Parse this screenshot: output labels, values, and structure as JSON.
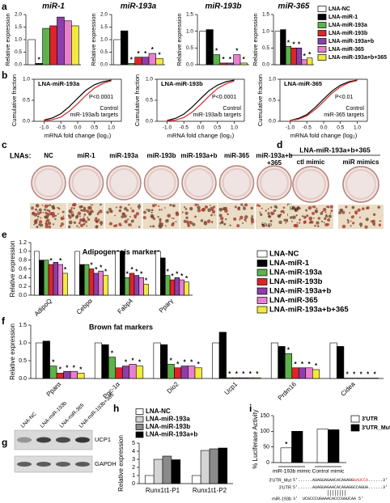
{
  "panel_labels": [
    "a",
    "b",
    "c",
    "d",
    "e",
    "f",
    "g",
    "h",
    "i"
  ],
  "chart_data": [
    {
      "type": "bar",
      "series": [
        {
          "name": "LNA-NC",
          "color": "#ffffff"
        },
        {
          "name": "LNA-miR-1",
          "color": "#000000"
        },
        {
          "name": "LNA-miR-193a",
          "color": "#5cb34a"
        },
        {
          "name": "LNA-miR-193b",
          "color": "#e0232a"
        },
        {
          "name": "LNA-miR-193a+b",
          "color": "#8c3fa8"
        },
        {
          "name": "LNA-miR-365",
          "color": "#e87fd0"
        },
        {
          "name": "LNA-miR-193a+b+365",
          "color": "#f2ea3c"
        }
      ],
      "subplots": [
        {
          "title": "miR-1",
          "ylabel": "Relative expression",
          "ylim": [
            0,
            2
          ],
          "yticks": [
            {
              "value": 0,
              "label": "0.0"
            },
            0.5,
            {
              "value": 1,
              "label": "1.0"
            },
            1.5,
            {
              "value": 2,
              "label": "2.0"
            }
          ],
          "values": [
            1.0,
            0.05,
            1.45,
            1.55,
            1.9,
            1.75,
            1.55
          ],
          "stars": [
            null,
            "*",
            null,
            null,
            null,
            null,
            null
          ]
        },
        {
          "title": "miR-193a",
          "ylabel": "Relative expression",
          "ylim": [
            0,
            2
          ],
          "yticks": [
            {
              "value": 0,
              "label": "0.0"
            },
            0.5,
            {
              "value": 1,
              "label": "1.0"
            },
            1.5,
            {
              "value": 2,
              "label": "2.0"
            }
          ],
          "values": [
            1.0,
            1.35,
            0.05,
            0.3,
            0.3,
            0.45,
            0.25
          ],
          "stars": [
            null,
            null,
            "*",
            "*",
            "*",
            "*",
            "*"
          ]
        },
        {
          "title": "miR-193b",
          "ylabel": "Relative expression",
          "ylim": [
            0,
            1.5
          ],
          "yticks": [
            {
              "value": 0,
              "label": "0.0"
            },
            0.5,
            {
              "value": 1,
              "label": "1.0"
            },
            1.5
          ],
          "values": [
            1.0,
            1.05,
            0.3,
            0.05,
            0.05,
            0.3,
            0.05
          ],
          "stars": [
            null,
            null,
            "*",
            "*",
            "*",
            "*",
            "*"
          ]
        },
        {
          "title": "miR-365",
          "ylabel": "Relative expression",
          "ylim": [
            0,
            1.5
          ],
          "yticks": [
            {
              "value": 0,
              "label": "0.0"
            },
            0.5,
            {
              "value": 1,
              "label": "1.0"
            },
            1.5
          ],
          "values": [
            1.0,
            1.05,
            0.55,
            0.5,
            0.5,
            0.15,
            0.2
          ],
          "stars": [
            null,
            null,
            "*",
            "*",
            "*",
            "*",
            "*"
          ]
        }
      ]
    },
    {
      "type": "line",
      "subplots": [
        {
          "title": "LNA-miR-193a",
          "pvalue": "P<0.0001",
          "xlabel": "mRNA fold change (log₂)",
          "ylabel": "Cumulative fraction",
          "xlim": [
            -1.3,
            1.3
          ],
          "ylim": [
            0,
            1
          ],
          "xticks": [
            {
              "value": -1,
              "label": "-1.0"
            },
            -0.5,
            {
              "value": 0,
              "label": "0.0"
            },
            0.5,
            {
              "value": 1,
              "label": "1.0"
            }
          ],
          "yticks": [
            {
              "value": 0,
              "label": "0.0"
            },
            0.5,
            {
              "value": 1,
              "label": "1.0"
            }
          ],
          "x": [
            -1.0,
            -0.75,
            -0.5,
            -0.25,
            0,
            0.25,
            0.5,
            0.75,
            1.0
          ],
          "series": [
            {
              "name": "Control",
              "color": "#000000",
              "values": [
                0.03,
                0.08,
                0.18,
                0.35,
                0.55,
                0.74,
                0.87,
                0.94,
                0.98
              ]
            },
            {
              "name": "miR-193a/b targets",
              "color": "#d62728",
              "values": [
                0.01,
                0.04,
                0.1,
                0.24,
                0.42,
                0.62,
                0.79,
                0.9,
                0.96
              ]
            }
          ]
        },
        {
          "title": "LNA-miR-193b",
          "pvalue": "P<0.0001",
          "xlabel": "mRNA fold change (log₂)",
          "ylabel": "Cumulative fraction",
          "xlim": [
            -1.3,
            1.3
          ],
          "ylim": [
            0,
            1
          ],
          "xticks": [
            {
              "value": -1,
              "label": "-1.0"
            },
            -0.5,
            {
              "value": 0,
              "label": "0.0"
            },
            0.5,
            {
              "value": 1,
              "label": "1.0"
            }
          ],
          "yticks": [
            {
              "value": 0,
              "label": "0.0"
            },
            0.5,
            {
              "value": 1,
              "label": "1.0"
            }
          ],
          "x": [
            -1.0,
            -0.75,
            -0.5,
            -0.25,
            0,
            0.25,
            0.5,
            0.75,
            1.0
          ],
          "series": [
            {
              "name": "Control",
              "color": "#000000",
              "values": [
                0.02,
                0.07,
                0.17,
                0.34,
                0.54,
                0.73,
                0.86,
                0.94,
                0.98
              ]
            },
            {
              "name": "miR-193a/b targets",
              "color": "#d62728",
              "values": [
                0.01,
                0.03,
                0.09,
                0.22,
                0.4,
                0.6,
                0.78,
                0.89,
                0.96
              ]
            }
          ]
        },
        {
          "title": "LNA-miR-365",
          "pvalue": "P<0.01",
          "xlabel": "mRNA fold change (log₂)",
          "ylabel": "Cumulative fraction",
          "xlim": [
            -1.3,
            1.3
          ],
          "ylim": [
            0,
            1
          ],
          "xticks": [
            {
              "value": -1,
              "label": "-1.0"
            },
            -0.5,
            {
              "value": 0,
              "label": "0.0"
            },
            0.5,
            {
              "value": 1,
              "label": "1.0"
            }
          ],
          "yticks": [
            {
              "value": 0,
              "label": "0.0"
            },
            0.5,
            {
              "value": 1,
              "label": "1.0"
            }
          ],
          "x": [
            -1.0,
            -0.75,
            -0.5,
            -0.25,
            0,
            0.25,
            0.5,
            0.75,
            1.0
          ],
          "series": [
            {
              "name": "Control",
              "color": "#000000",
              "values": [
                0.02,
                0.07,
                0.16,
                0.33,
                0.53,
                0.72,
                0.86,
                0.94,
                0.98
              ]
            },
            {
              "name": "miR-365 targets",
              "color": "#d62728",
              "values": [
                0.02,
                0.05,
                0.13,
                0.28,
                0.47,
                0.67,
                0.82,
                0.92,
                0.97
              ]
            }
          ]
        }
      ]
    },
    {
      "type": "bar",
      "title": "Adipogenesis markers",
      "ylabel": "Relative expression",
      "categories": [
        "AdipoQ",
        "Cebpα",
        "Fabp4",
        "Pparγ"
      ],
      "ylim": [
        0,
        1.2
      ],
      "yticks": [
        {
          "value": 0,
          "label": "0.0"
        },
        0.2,
        0.4,
        0.6,
        0.8,
        {
          "value": 1,
          "label": "1.0"
        },
        1.2
      ],
      "series": [
        {
          "name": "LNA-NC",
          "color": "#ffffff",
          "values": [
            1.0,
            1.0,
            1.0,
            1.0
          ],
          "stars": [
            null,
            null,
            null,
            null
          ]
        },
        {
          "name": "LNA-miR-1",
          "color": "#000000",
          "values": [
            0.8,
            0.7,
            1.0,
            0.85
          ],
          "stars": [
            null,
            null,
            null,
            null
          ]
        },
        {
          "name": "LNA-miR-193a",
          "color": "#5cb34a",
          "values": [
            0.8,
            0.7,
            0.4,
            0.45
          ],
          "stars": [
            null,
            null,
            "*",
            "*"
          ]
        },
        {
          "name": "LNA-miR-193b",
          "color": "#e0232a",
          "values": [
            0.7,
            0.6,
            0.5,
            0.35
          ],
          "stars": [
            "*",
            "*",
            "*",
            "*"
          ]
        },
        {
          "name": "LNA-miR-193a+b",
          "color": "#8c3fa8",
          "values": [
            0.75,
            0.5,
            0.45,
            0.4
          ],
          "stars": [
            null,
            "*",
            "*",
            "*"
          ]
        },
        {
          "name": "LNA-miR-365",
          "color": "#e87fd0",
          "values": [
            0.7,
            0.55,
            0.4,
            0.35
          ],
          "stars": [
            "*",
            "*",
            "*",
            "*"
          ]
        },
        {
          "name": "LNA-miR-193a+b+365",
          "color": "#f2ea3c",
          "values": [
            0.5,
            0.45,
            0.25,
            0.3
          ],
          "stars": [
            "*",
            "*",
            "*",
            "*"
          ]
        }
      ]
    },
    {
      "type": "bar",
      "title": "Brown fat markers",
      "ylabel": "Relative expression",
      "categories": [
        "Pparα",
        "Pgc-1α",
        "Dio2",
        "Ucp1",
        "Prdm16",
        "Cidea"
      ],
      "ylim": [
        0,
        1.5
      ],
      "yticks": [
        {
          "value": 0,
          "label": "0.0"
        },
        0.5,
        {
          "value": 1,
          "label": "1.0"
        },
        1.5
      ],
      "series": [
        {
          "color": "#ffffff",
          "values": [
            1.0,
            1.0,
            1.0,
            1.0,
            1.0,
            1.0
          ],
          "stars": [
            null,
            null,
            null,
            null,
            null,
            null
          ]
        },
        {
          "color": "#000000",
          "values": [
            1.05,
            0.95,
            0.95,
            1.3,
            0.9,
            0.9
          ],
          "stars": [
            null,
            null,
            null,
            null,
            null,
            null
          ]
        },
        {
          "color": "#5cb34a",
          "values": [
            0.35,
            0.6,
            0.4,
            0.02,
            0.7,
            0.01
          ],
          "stars": [
            "*",
            "*",
            "*",
            "*",
            "*",
            "*"
          ]
        },
        {
          "color": "#e0232a",
          "values": [
            0.15,
            0.3,
            0.3,
            0.02,
            0.3,
            0.01
          ],
          "stars": [
            "*",
            null,
            "*",
            "*",
            "*",
            "*"
          ]
        },
        {
          "color": "#8c3fa8",
          "values": [
            0.2,
            0.35,
            0.35,
            0.02,
            0.3,
            0.01
          ],
          "stars": [
            "*",
            "*",
            "*",
            "*",
            "*",
            "*"
          ]
        },
        {
          "color": "#e87fd0",
          "values": [
            0.2,
            0.4,
            0.35,
            0.02,
            0.3,
            0.01
          ],
          "stars": [
            "*",
            "*",
            "*",
            "*",
            "*",
            "*"
          ]
        },
        {
          "color": "#f2ea3c",
          "values": [
            0.15,
            0.35,
            0.3,
            0.02,
            0.25,
            0.01
          ],
          "stars": [
            "*",
            "*",
            "*",
            "*",
            "*",
            "*"
          ]
        }
      ]
    },
    {
      "type": "bar",
      "ylabel": "Relative expression",
      "categories": [
        "Runx1t1-P1",
        "Runx1t1-P2"
      ],
      "ylim": [
        0,
        5
      ],
      "yticks": [
        0,
        1,
        2,
        3,
        4,
        5
      ],
      "series": [
        {
          "name": "LNA-NC",
          "color": "#ffffff",
          "values": [
            1.0,
            1.0
          ]
        },
        {
          "name": "LNA-miR-193a",
          "color": "#d4d4d4",
          "values": [
            3.0,
            4.1
          ]
        },
        {
          "name": "LNA-miR-193b",
          "color": "#8a8a8a",
          "values": [
            3.4,
            4.3
          ]
        },
        {
          "name": "LNA-miR-193a+b",
          "color": "#000000",
          "values": [
            2.95,
            4.4
          ]
        }
      ]
    },
    {
      "type": "bar",
      "ylabel": "% Luciferase Activity",
      "categories": [
        "miR-193b mimic",
        "Control mimic"
      ],
      "ylim": [
        0,
        150
      ],
      "yticks": [
        0,
        50,
        100,
        150
      ],
      "series": [
        {
          "name": "3'UTR",
          "color": "#ffffff",
          "values": [
            47,
            107
          ],
          "stars": [
            "*",
            null
          ]
        },
        {
          "name": "3'UTR_Mut",
          "color": "#000000",
          "values": [
            100,
            105
          ],
          "stars": [
            null,
            null
          ]
        }
      ]
    }
  ],
  "images": {
    "c": {
      "prefix": "LNAs:",
      "columns": [
        [
          "NC"
        ],
        [
          "miR-1"
        ],
        [
          "miR-193a"
        ],
        [
          "miR-193b"
        ],
        [
          "miR-193a+b"
        ],
        [
          "miR-365"
        ],
        [
          "miR-193a+b",
          "+365"
        ]
      ],
      "scale": "50μm"
    },
    "d": {
      "title": "LNA-miR-193a+b+365",
      "columns": [
        [
          "ctl mimic"
        ],
        [
          "miR mimics"
        ]
      ],
      "scale": "50μm"
    }
  },
  "blot": {
    "lanes": [
      "LNA-NC",
      "LNA-miR-193b",
      "LNA-miR-365",
      "LNA-miR-193b+365"
    ],
    "bands": [
      "UCP1",
      "GAPDH"
    ]
  },
  "sequence": {
    "highlight_color": "#d62728",
    "rows": [
      {
        "label": "3'UTR_Mut",
        "parts": [
          "5'......AUAGUAGAACACAGAGG",
          "GAUCCA",
          "......3'"
        ]
      },
      {
        "label": "3'UTR",
        "parts": [
          "5'......AUAGUAGAACACAGAGGCCAGUA......3'"
        ]
      },
      {
        "label": "miR-193b",
        "parts": [
          "3'  UCGCCCUGAAACACCCGGUCAA 5'"
        ]
      }
    ]
  }
}
